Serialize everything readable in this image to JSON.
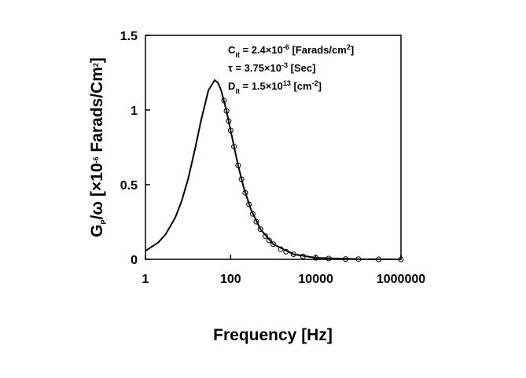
{
  "chart_data": {
    "type": "line",
    "xlabel": "Frequency [Hz]",
    "ylabel_parts": [
      "G",
      "P",
      "/ω [×10",
      "-6",
      " Farads/Cm",
      "2",
      "]"
    ],
    "annotations": [
      [
        "C",
        "it",
        " = 2.4×10",
        "-6",
        " [Farads/cm",
        "2",
        "]"
      ],
      [
        "τ = 3.75×10",
        "-3",
        " [Sec]"
      ],
      [
        "D",
        "it",
        " = 1.5×10",
        "13",
        " [cm",
        "-2",
        "]"
      ]
    ],
    "xscale": "log",
    "xlim": [
      1,
      1000000
    ],
    "xticks": [
      1,
      100,
      10000,
      1000000
    ],
    "ylim": [
      0,
      1.5
    ],
    "yticks": [
      0,
      0.5,
      1,
      1.5
    ],
    "series": [
      {
        "style": "line",
        "color": "#000000",
        "x": [
          1,
          2,
          3,
          5,
          7,
          10,
          15,
          20,
          30,
          42,
          50,
          60,
          80,
          100,
          150,
          200,
          300,
          500,
          1000,
          3000,
          10000,
          100000,
          1000000
        ],
        "values": [
          0.057,
          0.113,
          0.169,
          0.279,
          0.386,
          0.536,
          0.754,
          0.925,
          1.131,
          1.2,
          1.184,
          1.131,
          0.994,
          0.863,
          0.629,
          0.487,
          0.333,
          0.202,
          0.102,
          0.034,
          0.01,
          0.001,
          0.0001
        ]
      },
      {
        "style": "marker",
        "color": "#000000",
        "x": [
          70,
          80,
          90,
          100,
          120,
          150,
          180,
          220,
          270,
          330,
          400,
          500,
          650,
          800,
          1000,
          1500,
          2000,
          3000,
          5000,
          10000,
          20000,
          50000,
          100000,
          300000,
          1000000
        ],
        "values": [
          1.064,
          0.994,
          0.926,
          0.863,
          0.755,
          0.629,
          0.536,
          0.446,
          0.368,
          0.304,
          0.252,
          0.202,
          0.156,
          0.127,
          0.102,
          0.068,
          0.051,
          0.034,
          0.02,
          0.01,
          0.005,
          0.002,
          0.001,
          0,
          0
        ]
      }
    ]
  }
}
